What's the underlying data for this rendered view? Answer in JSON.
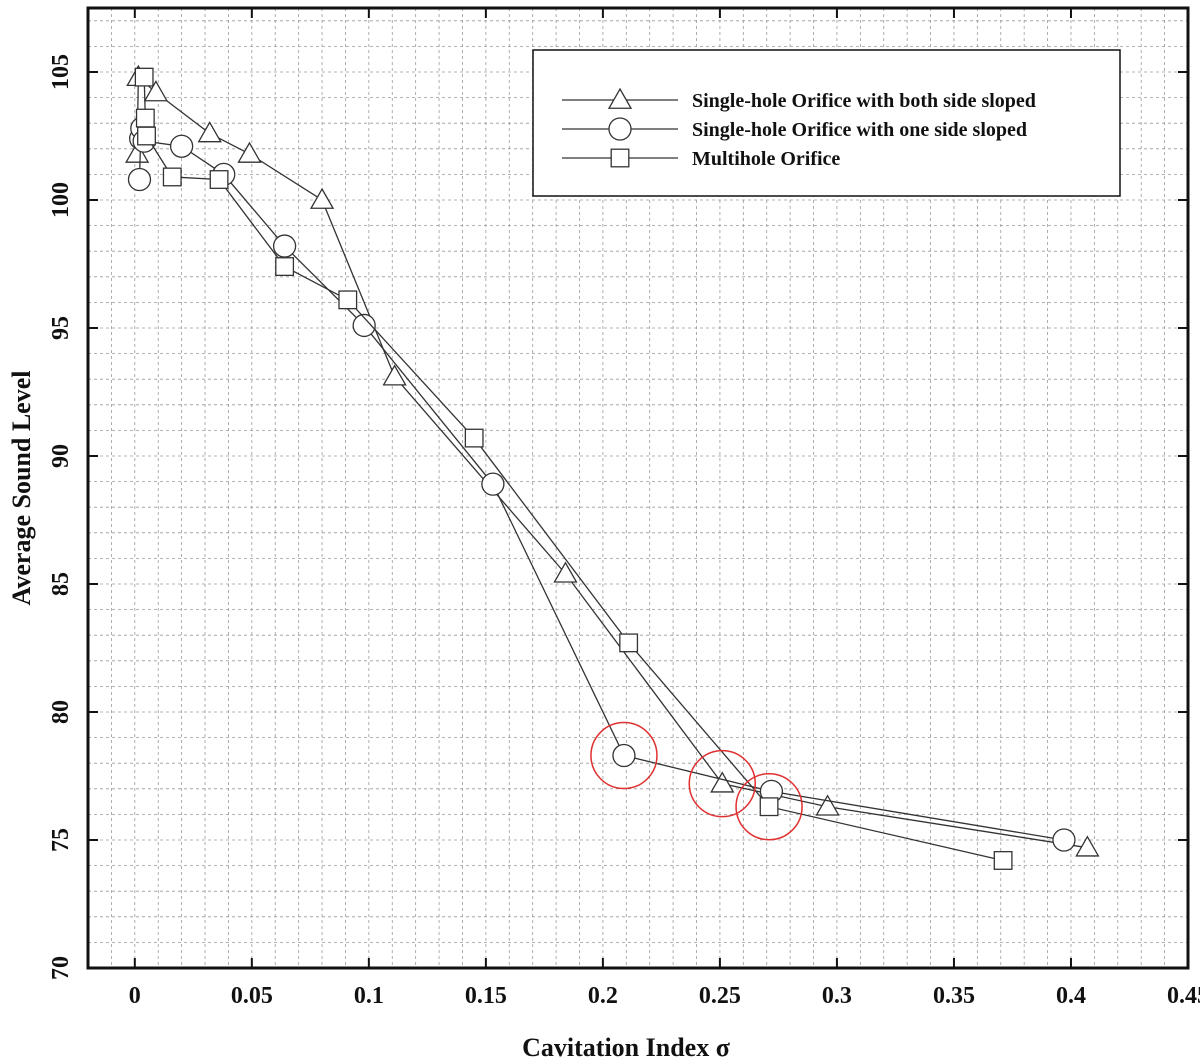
{
  "chart_data": {
    "type": "line",
    "xlabel": "Cavitation Index σ",
    "ylabel": "Average Sound Level",
    "xlim": [
      -0.02,
      0.45
    ],
    "ylim": [
      70,
      107.5
    ],
    "xticks": [
      0,
      0.05,
      0.1,
      0.15,
      0.2,
      0.25,
      0.3,
      0.35,
      0.4,
      0.45
    ],
    "xtick_labels": [
      "0",
      "0.05",
      "0.1",
      "0.15",
      "0.2",
      "0.25",
      "0.3",
      "0.35",
      "0.4",
      "0.45"
    ],
    "yticks": [
      70,
      75,
      80,
      85,
      90,
      95,
      100,
      105
    ],
    "ytick_labels": [
      "70",
      "75",
      "80",
      "85",
      "90",
      "95",
      "100",
      "105"
    ],
    "grid": "dashed, minor",
    "legend_position": "top-right",
    "series": [
      {
        "name": "Single-hole Orifice with both side sloped",
        "marker": "triangle",
        "x": [
          0.001,
          0.0015,
          0.009,
          0.032,
          0.049,
          0.08,
          0.111,
          0.184,
          0.251,
          0.296,
          0.407
        ],
        "y": [
          101.8,
          104.8,
          104.2,
          102.6,
          101.8,
          100.0,
          93.1,
          85.4,
          77.2,
          76.3,
          74.7
        ]
      },
      {
        "name": "Single-hole Orifice with one side sloped",
        "marker": "circle",
        "x": [
          0.002,
          0.0025,
          0.003,
          0.004,
          0.02,
          0.038,
          0.064,
          0.098,
          0.153,
          0.209,
          0.272,
          0.397
        ],
        "y": [
          100.8,
          102.4,
          102.8,
          102.3,
          102.1,
          101.0,
          98.2,
          95.1,
          88.9,
          78.3,
          76.9,
          75.0
        ]
      },
      {
        "name": "Multihole Orifice",
        "marker": "square",
        "x": [
          0.004,
          0.0045,
          0.005,
          0.016,
          0.036,
          0.064,
          0.091,
          0.145,
          0.211,
          0.271,
          0.371
        ],
        "y": [
          104.8,
          103.2,
          102.5,
          100.9,
          100.8,
          97.4,
          96.1,
          90.7,
          82.7,
          76.3,
          74.2
        ]
      }
    ],
    "highlights": [
      {
        "x": 0.209,
        "y": 78.3,
        "color": "#e03030"
      },
      {
        "x": 0.251,
        "y": 77.2,
        "color": "#e03030"
      },
      {
        "x": 0.271,
        "y": 76.3,
        "color": "#e03030"
      }
    ]
  }
}
